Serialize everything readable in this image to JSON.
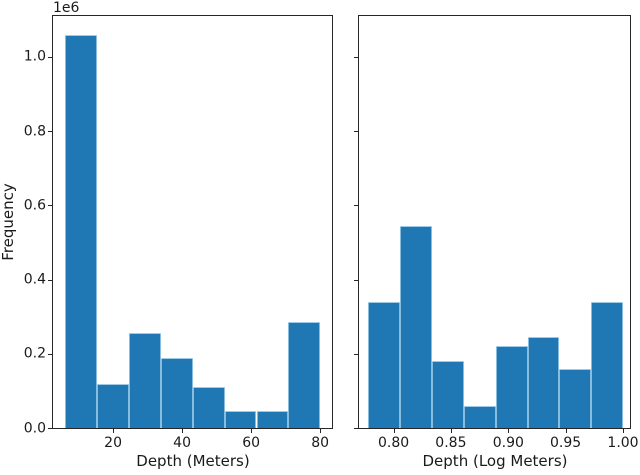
{
  "figure": {
    "background_color": "#ffffff",
    "bar_color": "#1f77b4",
    "bar_edge_highlight_color": "#aed4ec",
    "axis_line_color": "#262626",
    "text_color": "#1a1a1a"
  },
  "labels": {
    "left_xlabel": "Depth (Meters)",
    "right_xlabel": "Depth (Log Meters)",
    "ylabel": "Frequency",
    "y_offset_text": "1e6"
  },
  "chart_data": [
    {
      "type": "bar",
      "subtype": "histogram",
      "title": "",
      "xlabel": "Depth (Meters)",
      "ylabel": "Frequency",
      "y_scale_offset": "1e6",
      "grid": false,
      "legend": false,
      "xlim": [
        2.3,
        83.7
      ],
      "ylim": [
        0,
        1113000
      ],
      "xticks": [
        20,
        40,
        60,
        80
      ],
      "xtick_labels": [
        "20",
        "40",
        "60",
        "80"
      ],
      "yticks": [
        0,
        200000,
        400000,
        600000,
        800000,
        1000000
      ],
      "ytick_labels": [
        "0.0",
        "0.2",
        "0.4",
        "0.6",
        "0.8",
        "1.0"
      ],
      "bin_edges": [
        6.1,
        15.34,
        24.58,
        33.81,
        43.05,
        52.29,
        61.53,
        70.76,
        80.0
      ],
      "frequencies": [
        1060000,
        120000,
        255000,
        190000,
        110000,
        45000,
        45000,
        285000
      ]
    },
    {
      "type": "bar",
      "subtype": "histogram",
      "title": "",
      "xlabel": "Depth (Log Meters)",
      "ylabel": "",
      "grid": false,
      "legend": false,
      "xlim": [
        0.769,
        1.007
      ],
      "ylim": [
        0,
        1113000
      ],
      "xticks": [
        0.8,
        0.85,
        0.9,
        0.95,
        1.0
      ],
      "xtick_labels": [
        "0.80",
        "0.85",
        "0.90",
        "0.95",
        "1.00"
      ],
      "yticks": [
        0,
        200000,
        400000,
        600000,
        800000,
        1000000
      ],
      "ytick_labels": [],
      "bin_edges": [
        0.778,
        0.8058,
        0.8335,
        0.8613,
        0.8891,
        0.9169,
        0.9446,
        0.9724,
        1.0002
      ],
      "frequencies": [
        340000,
        545000,
        180000,
        60000,
        220000,
        245000,
        160000,
        340000
      ]
    }
  ]
}
